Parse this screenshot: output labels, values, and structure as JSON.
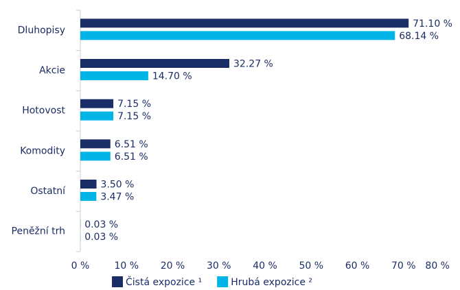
{
  "chart_data": {
    "type": "bar",
    "orientation": "horizontal",
    "categories": [
      "Dluhopisy",
      "Akcie",
      "Hotovost",
      "Komodity",
      "Ostatní",
      "Peněžní trh"
    ],
    "series": [
      {
        "name": "Čistá expozice ¹",
        "color": "#1b2d66",
        "values": [
          71.1,
          32.27,
          7.15,
          6.51,
          3.5,
          0.03
        ],
        "value_labels": [
          "71.10 %",
          "32.27 %",
          "7.15 %",
          "6.51 %",
          "3.50 %",
          "0.03 %"
        ]
      },
      {
        "name": "Hrubá expozice ²",
        "color": "#00b4e6",
        "values": [
          68.14,
          14.7,
          7.15,
          6.51,
          3.47,
          0.03
        ],
        "value_labels": [
          "68.14 %",
          "14.70 %",
          "7.15 %",
          "6.51 %",
          "3.47 %",
          "0.03 %"
        ]
      }
    ],
    "xlim": [
      0,
      80
    ],
    "xticks": [
      {
        "value": 0,
        "label": "0 %"
      },
      {
        "value": 10,
        "label": "10 %"
      },
      {
        "value": 20,
        "label": "20 %"
      },
      {
        "value": 30,
        "label": "30 %"
      },
      {
        "value": 40,
        "label": "40 %"
      },
      {
        "value": 50,
        "label": "50 %"
      },
      {
        "value": 60,
        "label": "60 %"
      },
      {
        "value": 70,
        "label": "70 %"
      },
      {
        "value": 80,
        "label": "80 %"
      }
    ],
    "legend": "bottom"
  }
}
